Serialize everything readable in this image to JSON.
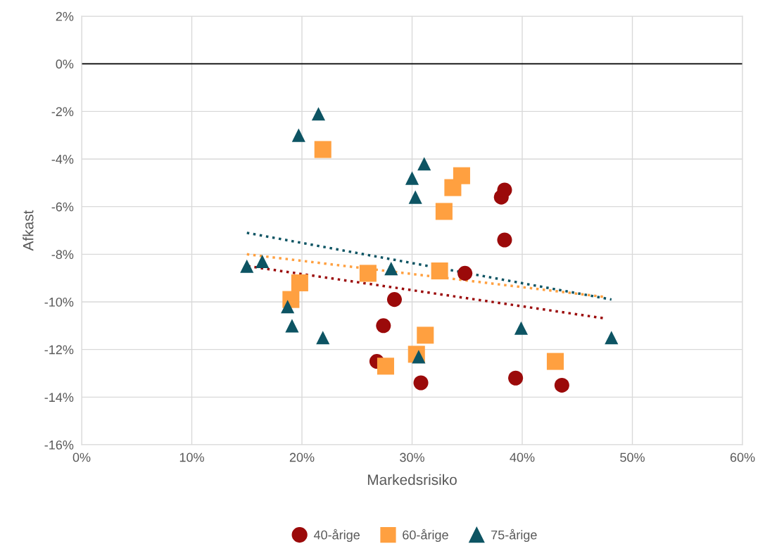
{
  "chart_data": {
    "type": "scatter",
    "xlabel": "Markedsrisiko",
    "ylabel": "Afkast",
    "xlim": [
      0,
      60
    ],
    "ylim": [
      -16,
      2
    ],
    "xticks": [
      {
        "value": 0,
        "label": "0%"
      },
      {
        "value": 10,
        "label": "10%"
      },
      {
        "value": 20,
        "label": "20%"
      },
      {
        "value": 30,
        "label": "30%"
      },
      {
        "value": 40,
        "label": "40%"
      },
      {
        "value": 50,
        "label": "50%"
      },
      {
        "value": 60,
        "label": "60%"
      }
    ],
    "yticks": [
      {
        "value": -16,
        "label": "-16%"
      },
      {
        "value": -14,
        "label": "-14%"
      },
      {
        "value": -12,
        "label": "-12%"
      },
      {
        "value": -10,
        "label": "-10%"
      },
      {
        "value": -8,
        "label": "-8%"
      },
      {
        "value": -6,
        "label": "-6%"
      },
      {
        "value": -4,
        "label": "-4%"
      },
      {
        "value": -2,
        "label": "-2%"
      },
      {
        "value": 0,
        "label": "0%"
      },
      {
        "value": 2,
        "label": "2%"
      }
    ],
    "grid": true,
    "legend": "bottom",
    "ref_lines": [
      {
        "axis": "y",
        "value": 0,
        "color": "#000000"
      }
    ],
    "series": [
      {
        "name": "40-årige",
        "color": "#9b0a0a",
        "marker": "circle",
        "x": [
          38.1,
          38.4,
          38.4,
          34.8,
          28.4,
          27.4,
          26.8,
          30.8,
          39.4,
          43.6
        ],
        "values": [
          -5.6,
          -5.3,
          -7.4,
          -8.8,
          -9.9,
          -11.0,
          -12.5,
          -13.4,
          -13.2,
          -13.5
        ]
      },
      {
        "name": "60-årige",
        "color": "#ffa040",
        "marker": "square",
        "x": [
          21.9,
          34.5,
          33.7,
          32.9,
          32.5,
          26.0,
          19.8,
          19.0,
          31.2,
          30.4,
          27.6,
          43.0
        ],
        "values": [
          -3.6,
          -4.7,
          -5.2,
          -6.2,
          -8.7,
          -8.8,
          -9.2,
          -9.9,
          -11.4,
          -12.2,
          -12.7,
          -12.5
        ]
      },
      {
        "name": "75-årige",
        "color": "#0d5463",
        "marker": "triangle",
        "x": [
          21.5,
          19.7,
          30.0,
          31.1,
          30.3,
          15.0,
          16.4,
          28.1,
          18.7,
          19.1,
          21.9,
          30.6,
          39.9,
          48.1
        ],
        "values": [
          -2.1,
          -3.0,
          -4.8,
          -4.2,
          -5.6,
          -8.5,
          -8.3,
          -8.6,
          -10.2,
          -11.0,
          -11.5,
          -12.3,
          -11.1,
          -11.5
        ]
      },
      {
        "type": "line",
        "color": "#9b0a0a",
        "line_style": "dotted",
        "marker": "none",
        "x": [
          15.1,
          47.6
        ],
        "values": [
          -8.5,
          -10.7
        ]
      },
      {
        "type": "line",
        "color": "#ffa040",
        "line_style": "dotted",
        "marker": "none",
        "x": [
          15.0,
          47.6
        ],
        "values": [
          -8.0,
          -9.8
        ]
      },
      {
        "type": "line",
        "color": "#0d5463",
        "line_style": "dotted",
        "marker": "none",
        "x": [
          15.0,
          48.1
        ],
        "values": [
          -7.1,
          -9.9
        ]
      }
    ]
  }
}
